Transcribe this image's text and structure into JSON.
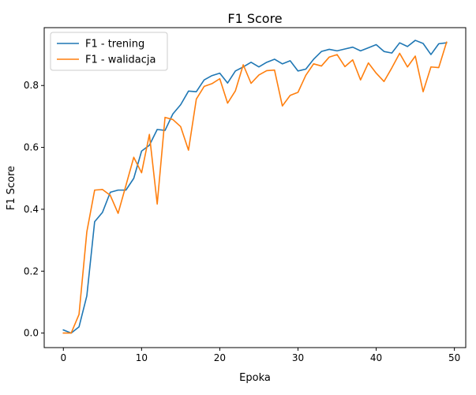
{
  "chart_data": {
    "type": "line",
    "title": "F1 Score",
    "xlabel": "Epoka",
    "ylabel": "F1 Score",
    "xlim": [
      -2.45,
      51.45
    ],
    "ylim": [
      -0.047,
      0.987
    ],
    "xticks": [
      0,
      10,
      20,
      30,
      40,
      50
    ],
    "yticks": [
      0.0,
      0.2,
      0.4,
      0.6,
      0.8
    ],
    "xtick_labels": [
      "0",
      "10",
      "20",
      "30",
      "40",
      "50"
    ],
    "ytick_labels": [
      "0.0",
      "0.2",
      "0.4",
      "0.6",
      "0.8"
    ],
    "grid": false,
    "legend_position": "upper-left",
    "x": [
      0,
      1,
      2,
      3,
      4,
      5,
      6,
      7,
      8,
      9,
      10,
      11,
      12,
      13,
      14,
      15,
      16,
      17,
      18,
      19,
      20,
      21,
      22,
      23,
      24,
      25,
      26,
      27,
      28,
      29,
      30,
      31,
      32,
      33,
      34,
      35,
      36,
      37,
      38,
      39,
      40,
      41,
      42,
      43,
      44,
      45,
      46,
      47,
      48,
      49
    ],
    "series": [
      {
        "name": "F1 - trening",
        "color": "#1f77b4",
        "values": [
          0.01,
          0.0,
          0.02,
          0.12,
          0.36,
          0.39,
          0.455,
          0.462,
          0.462,
          0.5,
          0.588,
          0.607,
          0.658,
          0.655,
          0.708,
          0.738,
          0.782,
          0.78,
          0.818,
          0.832,
          0.84,
          0.808,
          0.847,
          0.86,
          0.875,
          0.86,
          0.875,
          0.885,
          0.87,
          0.88,
          0.847,
          0.853,
          0.885,
          0.91,
          0.917,
          0.912,
          0.918,
          0.924,
          0.912,
          0.922,
          0.932,
          0.91,
          0.905,
          0.938,
          0.926,
          0.946,
          0.936,
          0.9,
          0.935,
          0.938
        ]
      },
      {
        "name": "F1 - walidacja",
        "color": "#ff7f0e",
        "values": [
          0.0,
          0.0,
          0.06,
          0.327,
          0.462,
          0.464,
          0.445,
          0.387,
          0.477,
          0.568,
          0.518,
          0.642,
          0.417,
          0.697,
          0.69,
          0.667,
          0.591,
          0.756,
          0.797,
          0.806,
          0.822,
          0.743,
          0.783,
          0.867,
          0.807,
          0.834,
          0.848,
          0.85,
          0.734,
          0.768,
          0.778,
          0.833,
          0.87,
          0.863,
          0.892,
          0.9,
          0.861,
          0.883,
          0.818,
          0.873,
          0.84,
          0.813,
          0.857,
          0.904,
          0.86,
          0.895,
          0.78,
          0.86,
          0.858,
          0.94
        ]
      }
    ]
  }
}
